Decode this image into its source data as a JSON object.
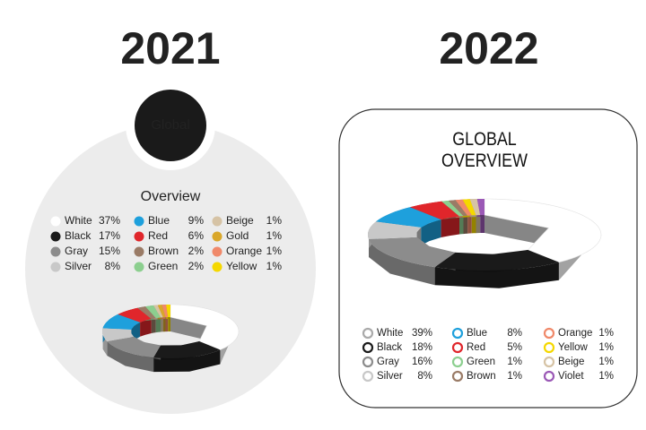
{
  "chart_data": [
    {
      "type": "donut",
      "title": "2021",
      "badge": "Global",
      "subtitle": "Overview",
      "frame": "circle",
      "legend_marker": "filled",
      "categories": [
        "White",
        "Black",
        "Gray",
        "Silver",
        "Blue",
        "Red",
        "Brown",
        "Green",
        "Beige",
        "Gold",
        "Orange",
        "Yellow"
      ],
      "values": [
        37,
        17,
        15,
        8,
        9,
        6,
        2,
        2,
        1,
        1,
        1,
        1
      ],
      "value_labels": [
        "37%",
        "17%",
        "15%",
        "8%",
        "9%",
        "6%",
        "2%",
        "2%",
        "1%",
        "1%",
        "1%",
        "1%"
      ],
      "colors": [
        "#ffffff",
        "#1a1a1a",
        "#8c8c8c",
        "#c8c8c8",
        "#1ea0dc",
        "#e0262b",
        "#9a7b66",
        "#8ccf8f",
        "#d6c3a5",
        "#d9a72a",
        "#f0896a",
        "#f5d800"
      ]
    },
    {
      "type": "donut",
      "title": "2022",
      "subtitle": "GLOBAL OVERVIEW",
      "frame": "rounded-box",
      "legend_marker": "ring",
      "categories": [
        "White",
        "Black",
        "Gray",
        "Silver",
        "Blue",
        "Red",
        "Green",
        "Brown",
        "Orange",
        "Yellow",
        "Beige",
        "Violet"
      ],
      "values": [
        39,
        18,
        16,
        8,
        8,
        5,
        1,
        1,
        1,
        1,
        1,
        1
      ],
      "value_labels": [
        "39%",
        "18%",
        "16%",
        "8%",
        "8%",
        "5%",
        "1%",
        "1%",
        "1%",
        "1%",
        "1%",
        "1%"
      ],
      "colors": [
        "#ffffff",
        "#1a1a1a",
        "#8c8c8c",
        "#c8c8c8",
        "#1ea0dc",
        "#e0262b",
        "#8ccf8f",
        "#9a7b66",
        "#f0896a",
        "#f5d800",
        "#d6c3a5",
        "#9b59b6"
      ]
    }
  ]
}
